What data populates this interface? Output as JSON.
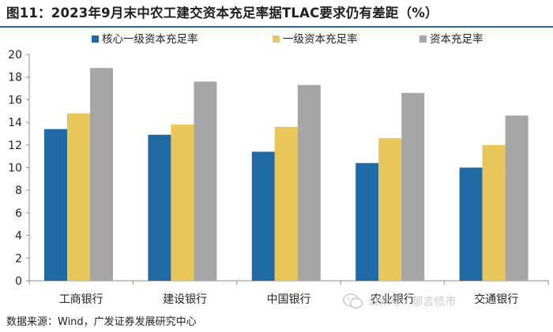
{
  "title": "图11：2023年9月末中农工建交资本充足率据TLAC要求仍有差距（%）",
  "source": "数据来源：Wind，广发证券发展研究中心",
  "watermark": "公众号 · 郁言债市",
  "chart_data": {
    "type": "bar",
    "title": "2023年9月末中农工建交资本充足率据TLAC要求仍有差距（%）",
    "categories": [
      "工商银行",
      "建设银行",
      "中国银行",
      "农业银行",
      "交通银行"
    ],
    "series": [
      {
        "name": "核心一级资本充足率",
        "color": "#1f6aa5",
        "values": [
          13.4,
          12.9,
          11.4,
          10.4,
          10.0
        ]
      },
      {
        "name": "一级资本充足率",
        "color": "#e8c65a",
        "values": [
          14.8,
          13.8,
          13.6,
          12.6,
          12.0
        ]
      },
      {
        "name": "资本充足率",
        "color": "#a6a6a6",
        "values": [
          18.8,
          17.6,
          17.3,
          16.6,
          14.6
        ]
      }
    ],
    "ylim": [
      0,
      20
    ],
    "yticks": [
      0,
      2,
      4,
      6,
      8,
      10,
      12,
      14,
      16,
      18,
      20
    ],
    "xlabel": "",
    "ylabel": "",
    "legend_position": "top"
  }
}
